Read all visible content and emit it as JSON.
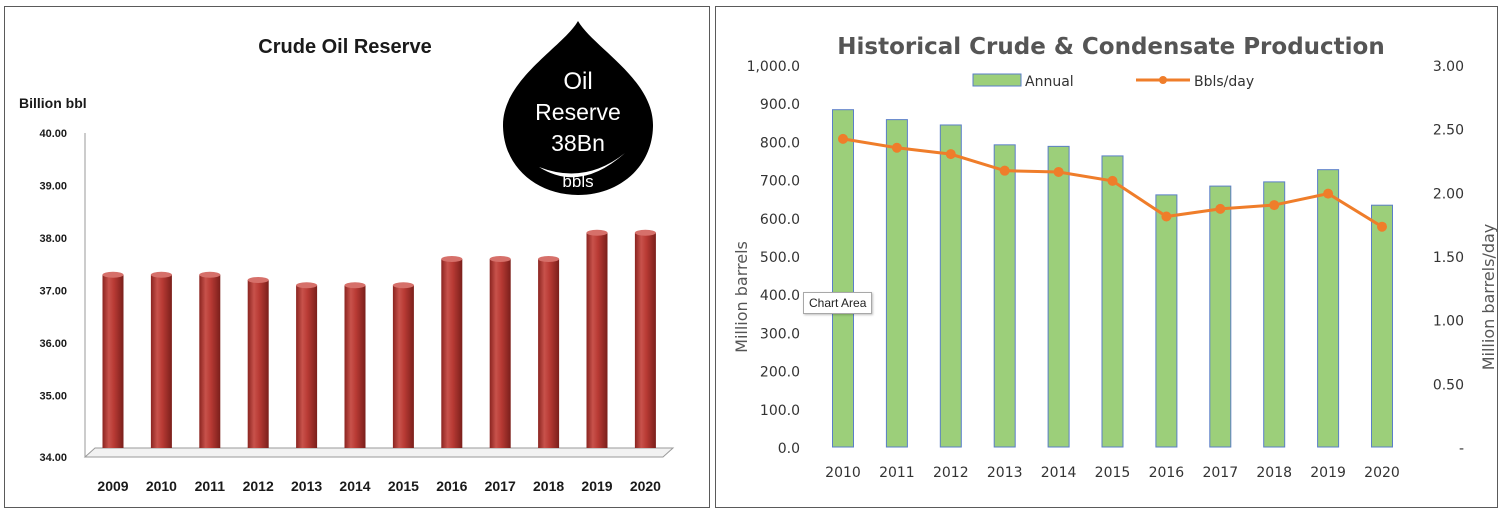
{
  "colors": {
    "reserve_bar": "#b83a34",
    "reserve_bar_dark": "#8a2420",
    "reserve_bar_light": "#d6706a",
    "annual_bar": "#9ccf7a",
    "annual_bar_border": "#5a7ec8",
    "bbls_line": "#ef7d2a",
    "drop": "#000000"
  },
  "drop_badge": {
    "line1": "Oil",
    "line2": "Reserve",
    "line3": "38Bn",
    "line4": "bbls"
  },
  "tooltip": {
    "text": "Chart Area"
  },
  "chart_data": [
    {
      "type": "bar",
      "title": "Crude Oil Reserve",
      "ylabel": "Billion bbl",
      "xlabel": "",
      "categories": [
        "2009",
        "2010",
        "2011",
        "2012",
        "2013",
        "2014",
        "2015",
        "2016",
        "2017",
        "2018",
        "2019",
        "2020"
      ],
      "values": [
        37.3,
        37.3,
        37.3,
        37.2,
        37.1,
        37.1,
        37.1,
        37.6,
        37.6,
        37.6,
        38.1,
        38.1
      ],
      "ylim": [
        34,
        40
      ],
      "y_ticks": [
        "34.00",
        "35.00",
        "36.00",
        "37.00",
        "38.00",
        "39.00",
        "40.00"
      ],
      "grid": false
    },
    {
      "type": "bar",
      "title": "Historical Crude & Condensate Production",
      "xlabel": "",
      "ylabel": "Million barrels",
      "y2label": "Million barrels/day",
      "categories": [
        "2010",
        "2011",
        "2012",
        "2013",
        "2014",
        "2015",
        "2016",
        "2017",
        "2018",
        "2019",
        "2020"
      ],
      "series": [
        {
          "name": "Annual",
          "type": "bar",
          "axis": "left",
          "values": [
            883,
            857,
            843,
            791,
            787,
            762,
            660,
            683,
            694,
            726,
            633
          ]
        },
        {
          "name": "Bbls/day",
          "type": "line",
          "axis": "right",
          "values": [
            2.42,
            2.35,
            2.3,
            2.17,
            2.16,
            2.09,
            1.81,
            1.87,
            1.9,
            1.99,
            1.73
          ]
        }
      ],
      "ylim": [
        0,
        1000
      ],
      "y2lim": [
        0,
        3
      ],
      "y_ticks": [
        "0.0",
        "100.0",
        "200.0",
        "300.0",
        "400.0",
        "500.0",
        "600.0",
        "700.0",
        "800.0",
        "900.0",
        "1,000.0"
      ],
      "y2_ticks": [
        "-",
        "0.50",
        "1.00",
        "1.50",
        "2.00",
        "2.50",
        "3.00"
      ],
      "legend_position": "top",
      "grid": false
    }
  ]
}
